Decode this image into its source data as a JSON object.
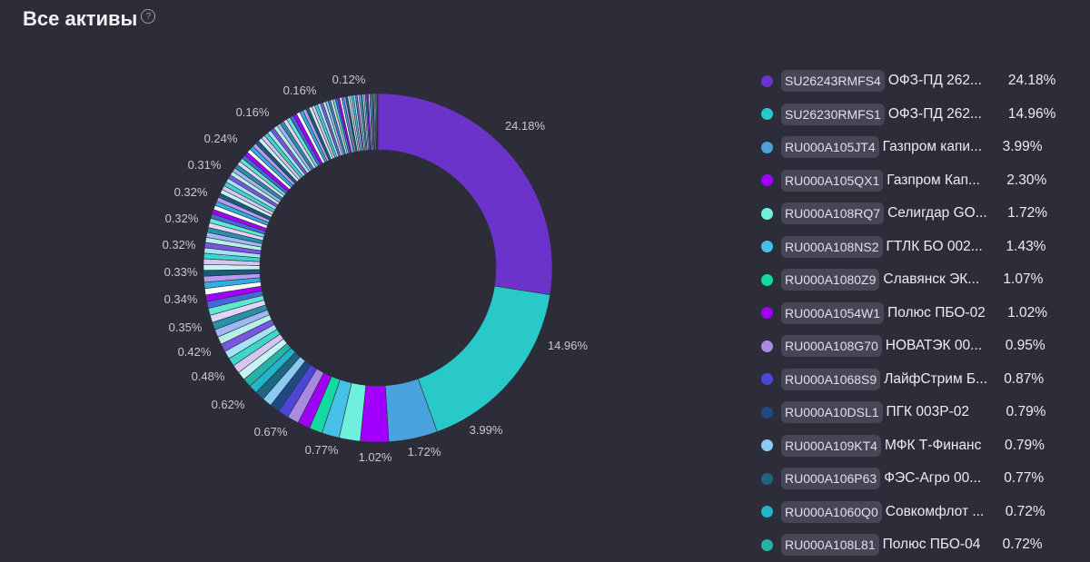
{
  "title": "Все активы",
  "help_icon": "question-circle-icon",
  "chart_data": {
    "type": "pie",
    "subtype": "donut",
    "start": "top",
    "direction": "clockwise",
    "legend_placement": "right",
    "legend": [
      {
        "code": "SU26243RMFS4",
        "name": "ОФЗ-ПД 262...",
        "percent": "24.18%",
        "value": 24.18,
        "color": "#6b33c9"
      },
      {
        "code": "SU26230RMFS1",
        "name": "ОФЗ-ПД 262...",
        "percent": "14.96%",
        "value": 14.96,
        "color": "#2ac9c9"
      },
      {
        "code": "RU000A105JT4",
        "name": "Газпром капи...",
        "percent": "3.99%",
        "value": 3.99,
        "color": "#4aa3dc"
      },
      {
        "code": "RU000A105QX1",
        "name": "Газпром Кап...",
        "percent": "2.30%",
        "value": 2.3,
        "color": "#a100ff"
      },
      {
        "code": "RU000A108RQ7",
        "name": "Селигдар GO...",
        "percent": "1.72%",
        "value": 1.72,
        "color": "#6ff0dc"
      },
      {
        "code": "RU000A108NS2",
        "name": "ГТЛК БО 002...",
        "percent": "1.43%",
        "value": 1.43,
        "color": "#45c0e6"
      },
      {
        "code": "RU000A1080Z9",
        "name": "Славянск ЭК...",
        "percent": "1.07%",
        "value": 1.07,
        "color": "#14d9a0"
      },
      {
        "code": "RU000A1054W1",
        "name": "Полюс ПБО-02",
        "percent": "1.02%",
        "value": 1.02,
        "color": "#9d00f5"
      },
      {
        "code": "RU000A108G70",
        "name": "НОВАТЭК 00...",
        "percent": "0.95%",
        "value": 0.95,
        "color": "#a98ae0"
      },
      {
        "code": "RU000A1068S9",
        "name": "ЛайфСтрим Б...",
        "percent": "0.87%",
        "value": 0.87,
        "color": "#4b46d6"
      },
      {
        "code": "RU000A10DSL1",
        "name": "ПГК 003Р-02",
        "percent": "0.79%",
        "value": 0.79,
        "color": "#1e4a82"
      },
      {
        "code": "RU000A109KT4",
        "name": "МФК Т-Финанс",
        "percent": "0.79%",
        "value": 0.79,
        "color": "#8ccbf0"
      },
      {
        "code": "RU000A106P63",
        "name": "ФЭС-Агро 00...",
        "percent": "0.77%",
        "value": 0.77,
        "color": "#1c6680"
      },
      {
        "code": "RU000A1060Q0",
        "name": "Совкомфлот ...",
        "percent": "0.72%",
        "value": 0.72,
        "color": "#22b5c7"
      },
      {
        "code": "RU000A108L81",
        "name": "Полюс ПБО-04",
        "percent": "0.72%",
        "value": 0.72,
        "color": "#25b3a8"
      }
    ],
    "slice_labels": [
      "24.18%",
      "14.96%",
      "3.99%",
      "1.72%",
      "1.02%",
      "0.77%",
      "0.67%",
      "0.62%",
      "0.48%",
      "0.42%",
      "0.35%",
      "0.34%",
      "0.33%",
      "0.32%",
      "0.32%",
      "0.32%",
      "0.31%",
      "0.24%",
      "0.16%",
      "0.16%",
      "0.12%"
    ],
    "other_slices_estimated": [
      0.7,
      0.69,
      0.67,
      0.66,
      0.65,
      0.64,
      0.63,
      0.62,
      0.6,
      0.58,
      0.56,
      0.54,
      0.52,
      0.5,
      0.49,
      0.48,
      0.47,
      0.46,
      0.45,
      0.44,
      0.43,
      0.42,
      0.41,
      0.4,
      0.39,
      0.38,
      0.37,
      0.36,
      0.36,
      0.35,
      0.35,
      0.35,
      0.34,
      0.34,
      0.34,
      0.34,
      0.33,
      0.33,
      0.33,
      0.33,
      0.33,
      0.32,
      0.32,
      0.32,
      0.32,
      0.32,
      0.32,
      0.32,
      0.32,
      0.32,
      0.32,
      0.32,
      0.32,
      0.32,
      0.31,
      0.31,
      0.31,
      0.31,
      0.3,
      0.3,
      0.29,
      0.28,
      0.27,
      0.26,
      0.25,
      0.25,
      0.24,
      0.24,
      0.23,
      0.22,
      0.21,
      0.2,
      0.2,
      0.19,
      0.18,
      0.18,
      0.17,
      0.17,
      0.16,
      0.16,
      0.16,
      0.16,
      0.16,
      0.15,
      0.15,
      0.14,
      0.14,
      0.13,
      0.13,
      0.12,
      0.12,
      0.12,
      0.11,
      0.11,
      0.1,
      0.1,
      0.09,
      0.08,
      0.07,
      0.06,
      0.05
    ],
    "other_palette": [
      "#c9f3f3",
      "#d6c6f3",
      "#3fd6c9",
      "#a6e2f7",
      "#7a55e0",
      "#b7f0e6",
      "#9fb7f5",
      "#2c8fa8",
      "#e0d6fa",
      "#5ee8d0",
      "#4866d8",
      "#a100ff",
      "#ffffff",
      "#2bb0e0",
      "#b89af0",
      "#1b5a78"
    ]
  }
}
